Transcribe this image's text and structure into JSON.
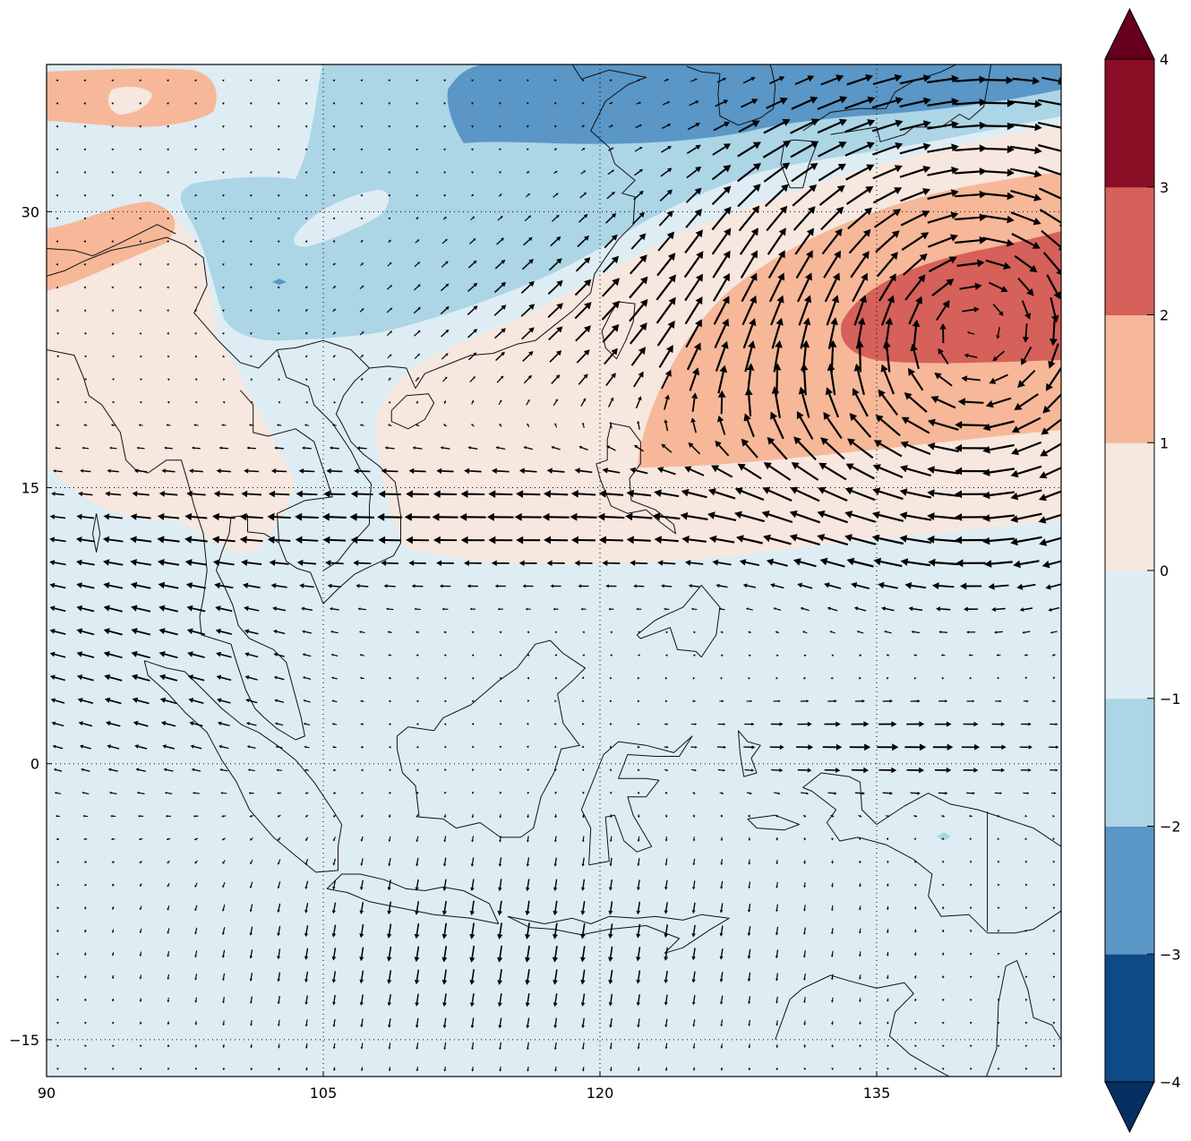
{
  "chart_data": {
    "type": "heatmap",
    "title": "",
    "xlabel": "",
    "ylabel": "",
    "xlim": [
      90,
      145
    ],
    "ylim": [
      -17,
      38
    ],
    "x_ticks": [
      "90",
      "105",
      "120",
      "135"
    ],
    "y_ticks": [
      "30",
      "15",
      "0",
      "−15"
    ],
    "grid": true,
    "grid_style": "dotted",
    "overlay": "wind vectors (quiver)",
    "colorbar": {
      "position": "right",
      "extend": "both",
      "levels": [
        -4,
        -3,
        -2,
        -1,
        0,
        1,
        2,
        3,
        4
      ],
      "tick_labels": [
        "−4",
        "−3",
        "−2",
        "−1",
        "0",
        "1",
        "2",
        "3",
        "4"
      ],
      "colors": [
        "#053061",
        "#0e4b86",
        "#5a96c6",
        "#acd5e6",
        "#deedf3",
        "#f6e7df",
        "#f6b899",
        "#d6605a",
        "#8a0e26",
        "#67001f"
      ]
    },
    "regions": [
      {
        "name": "northwest Pacific anomaly core",
        "value_range": [
          2,
          3
        ],
        "lon": [
          129,
          145
        ],
        "lat": [
          21,
          28
        ]
      },
      {
        "name": "Philippine Sea positive band",
        "value_range": [
          1,
          2
        ],
        "lon": [
          122,
          145
        ],
        "lat": [
          16,
          30
        ]
      },
      {
        "name": "South China Sea positive area",
        "value_range": [
          0,
          1
        ],
        "lon": [
          109,
          145
        ],
        "lat": [
          11,
          32
        ]
      },
      {
        "name": "Indochina / Bay of Bengal positive area",
        "value_range": [
          0,
          1
        ],
        "lon": [
          92,
          104
        ],
        "lat": [
          11,
          31
        ]
      },
      {
        "name": "southern China negative area",
        "value_range": [
          -2,
          -1
        ],
        "lon": [
          98,
          124
        ],
        "lat": [
          24,
          38
        ]
      },
      {
        "name": "East China Sea / Japan negative core",
        "value_range": [
          -3,
          -2
        ],
        "lon": [
          112,
          145
        ],
        "lat": [
          34,
          38
        ]
      },
      {
        "name": "Tibetan Plateau positive patch",
        "value_range": [
          1,
          2
        ],
        "lon": [
          90,
          99
        ],
        "lat": [
          34,
          38
        ]
      },
      {
        "name": "Maritime Continent near-zero field",
        "value_range": [
          -1,
          0
        ],
        "lon": [
          90,
          145
        ],
        "lat": [
          -17,
          11
        ]
      }
    ],
    "wind_features": [
      {
        "name": "anticyclonic circulation",
        "center_lon": 138,
        "center_lat": 24
      },
      {
        "name": "easterly flow",
        "lat_range": [
          12,
          17
        ],
        "lon_range": [
          108,
          145
        ]
      },
      {
        "name": "southwesterly flow",
        "lat_range": [
          20,
          32
        ],
        "lon_range": [
          110,
          145
        ]
      }
    ]
  }
}
